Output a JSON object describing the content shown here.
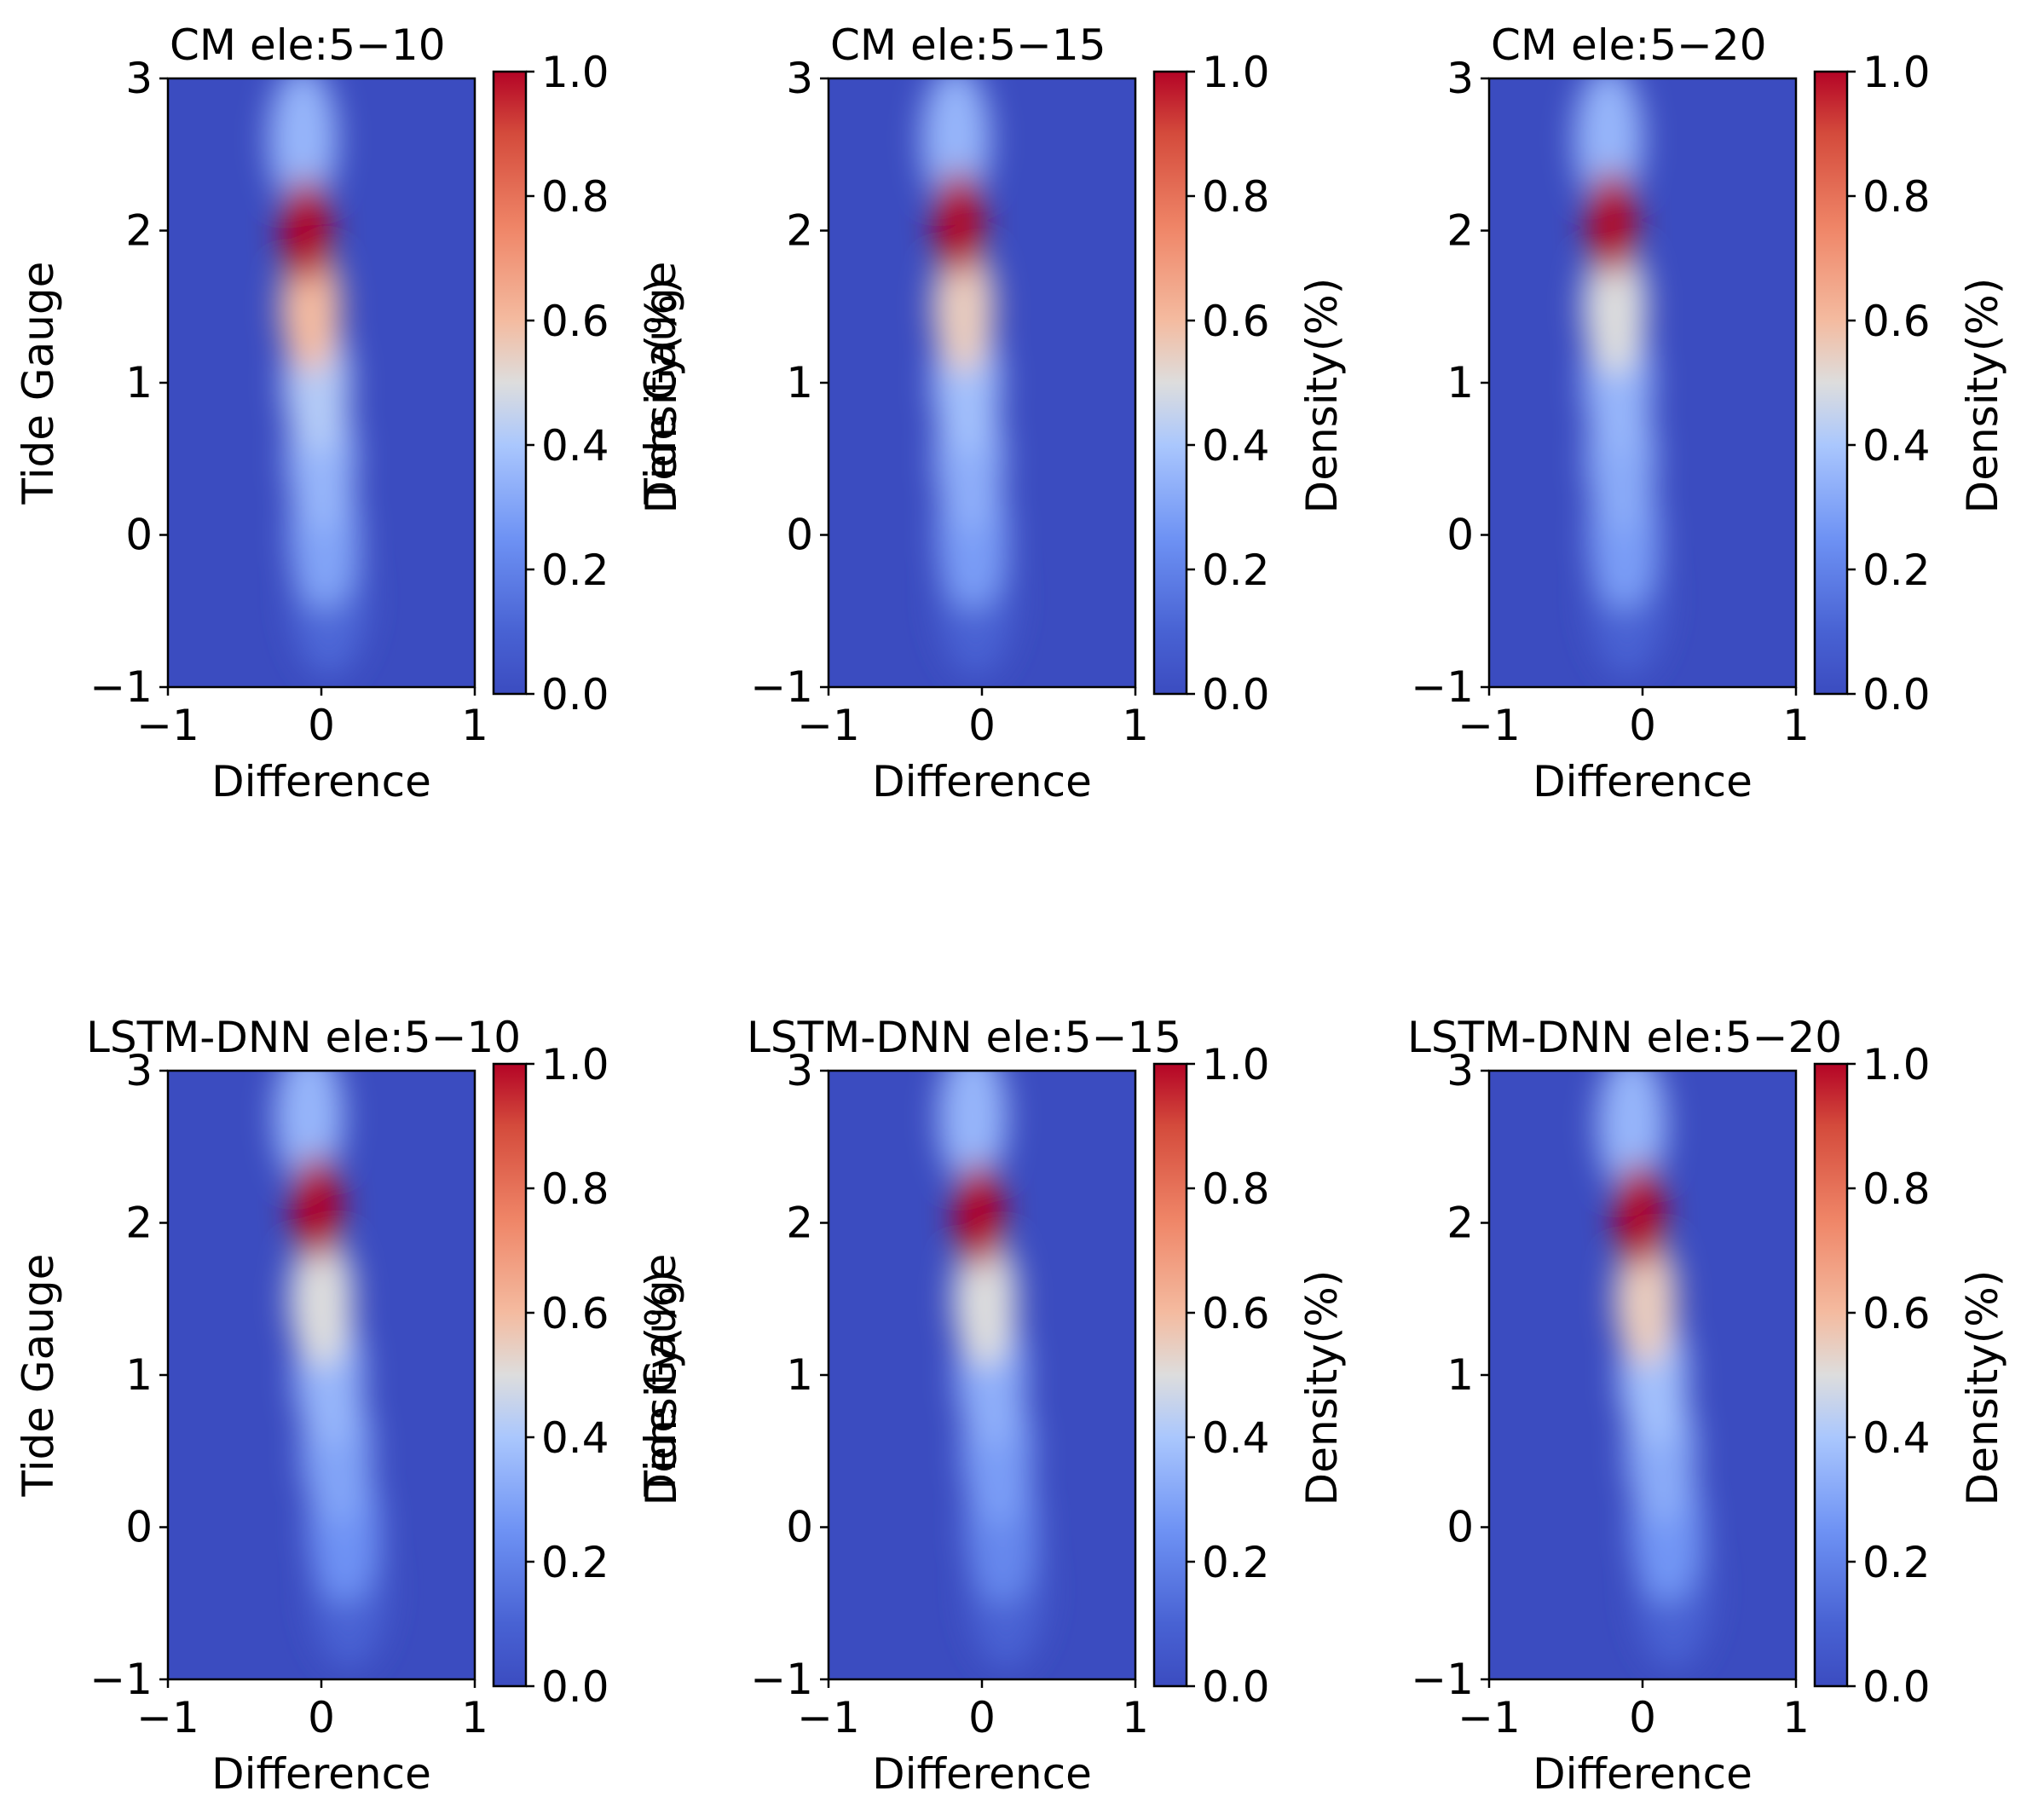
{
  "colors": {
    "colormap": "coolwarm",
    "low": "#3b4cc0",
    "mid": "#dddddd",
    "high": "#b40426",
    "axes_edge": "#000000"
  },
  "chart_data": [
    {
      "type": "heatmap",
      "title": "CM ele:5−10",
      "xlabel": "Difference",
      "ylabel": "Tide Gauge",
      "colorbar_label": "Density(%)",
      "xlim": [
        -1,
        1
      ],
      "ylim": [
        -1,
        3
      ],
      "clim": [
        0.0,
        1.0
      ],
      "x_ticks": [
        "−1",
        "0",
        "1"
      ],
      "y_ticks": [
        "−1",
        "0",
        "1",
        "2",
        "3"
      ],
      "colorbar_ticks": [
        "0.0",
        "0.2",
        "0.4",
        "0.6",
        "0.8",
        "1.0"
      ],
      "peak": {
        "x": -0.1,
        "y": 2.0,
        "density": 1.0
      },
      "density_profile_along_y": [
        {
          "y": 2.6,
          "x_center": -0.12,
          "density": 0.35
        },
        {
          "y": 2.0,
          "x_center": -0.1,
          "density": 1.0
        },
        {
          "y": 1.5,
          "x_center": -0.07,
          "density": 0.6
        },
        {
          "y": 1.0,
          "x_center": -0.03,
          "density": 0.42
        },
        {
          "y": 0.5,
          "x_center": 0.0,
          "density": 0.35
        },
        {
          "y": 0.0,
          "x_center": 0.02,
          "density": 0.3
        },
        {
          "y": -0.4,
          "x_center": 0.05,
          "density": 0.12
        }
      ]
    },
    {
      "type": "heatmap",
      "title": "CM ele:5−15",
      "xlabel": "Difference",
      "ylabel": "Tide Gauge",
      "colorbar_label": "Density(%)",
      "xlim": [
        -1,
        1
      ],
      "ylim": [
        -1,
        3
      ],
      "clim": [
        0.0,
        1.0
      ],
      "x_ticks": [
        "−1",
        "0",
        "1"
      ],
      "y_ticks": [
        "−1",
        "0",
        "1",
        "2",
        "3"
      ],
      "colorbar_ticks": [
        "0.0",
        "0.2",
        "0.4",
        "0.6",
        "0.8",
        "1.0"
      ],
      "peak": {
        "x": -0.15,
        "y": 2.05,
        "density": 1.0
      },
      "density_profile_along_y": [
        {
          "y": 2.6,
          "x_center": -0.17,
          "density": 0.35
        },
        {
          "y": 2.05,
          "x_center": -0.15,
          "density": 1.0
        },
        {
          "y": 1.5,
          "x_center": -0.12,
          "density": 0.55
        },
        {
          "y": 1.0,
          "x_center": -0.1,
          "density": 0.38
        },
        {
          "y": 0.5,
          "x_center": -0.08,
          "density": 0.33
        },
        {
          "y": 0.0,
          "x_center": -0.06,
          "density": 0.28
        },
        {
          "y": -0.4,
          "x_center": -0.04,
          "density": 0.1
        }
      ]
    },
    {
      "type": "heatmap",
      "title": "CM ele:5−20",
      "xlabel": "Difference",
      "ylabel": "",
      "colorbar_label": "Density(%)",
      "xlim": [
        -1,
        1
      ],
      "ylim": [
        -1,
        3
      ],
      "clim": [
        0.0,
        1.0
      ],
      "x_ticks": [
        "−1",
        "0",
        "1"
      ],
      "y_ticks": [
        "−1",
        "0",
        "1",
        "2",
        "3"
      ],
      "colorbar_ticks": [
        "0.0",
        "0.2",
        "0.4",
        "0.6",
        "0.8",
        "1.0"
      ],
      "peak": {
        "x": -0.2,
        "y": 2.05,
        "density": 1.0
      },
      "density_profile_along_y": [
        {
          "y": 2.6,
          "x_center": -0.22,
          "density": 0.35
        },
        {
          "y": 2.05,
          "x_center": -0.2,
          "density": 1.0
        },
        {
          "y": 1.5,
          "x_center": -0.18,
          "density": 0.5
        },
        {
          "y": 1.0,
          "x_center": -0.16,
          "density": 0.35
        },
        {
          "y": 0.5,
          "x_center": -0.14,
          "density": 0.32
        },
        {
          "y": 0.0,
          "x_center": -0.12,
          "density": 0.28
        },
        {
          "y": -0.4,
          "x_center": -0.1,
          "density": 0.1
        }
      ]
    },
    {
      "type": "heatmap",
      "title": "LSTM-DNN ele:5−10",
      "xlabel": "Difference",
      "ylabel": "Tide Gauge",
      "colorbar_label": "Density(%)",
      "xlim": [
        -1,
        1
      ],
      "ylim": [
        -1,
        3
      ],
      "clim": [
        0.0,
        1.0
      ],
      "x_ticks": [
        "−1",
        "0",
        "1"
      ],
      "y_ticks": [
        "−1",
        "0",
        "1",
        "2",
        "3"
      ],
      "colorbar_ticks": [
        "0.0",
        "0.2",
        "0.4",
        "0.6",
        "0.8",
        "1.0"
      ],
      "peak": {
        "x": -0.03,
        "y": 2.1,
        "density": 1.0
      },
      "density_profile_along_y": [
        {
          "y": 2.7,
          "x_center": -0.08,
          "density": 0.35
        },
        {
          "y": 2.1,
          "x_center": -0.03,
          "density": 1.0
        },
        {
          "y": 1.5,
          "x_center": 0.0,
          "density": 0.5
        },
        {
          "y": 1.0,
          "x_center": 0.05,
          "density": 0.35
        },
        {
          "y": 0.5,
          "x_center": 0.1,
          "density": 0.3
        },
        {
          "y": 0.0,
          "x_center": 0.15,
          "density": 0.25
        },
        {
          "y": -0.4,
          "x_center": 0.18,
          "density": 0.1
        }
      ]
    },
    {
      "type": "heatmap",
      "title": "LSTM-DNN ele:5−15",
      "xlabel": "Difference",
      "ylabel": "Tide Gauge",
      "colorbar_label": "Density(%)",
      "xlim": [
        -1,
        1
      ],
      "ylim": [
        -1,
        3
      ],
      "clim": [
        0.0,
        1.0
      ],
      "x_ticks": [
        "−1",
        "0",
        "1"
      ],
      "y_ticks": [
        "−1",
        "0",
        "1",
        "2",
        "3"
      ],
      "colorbar_ticks": [
        "0.0",
        "0.2",
        "0.4",
        "0.6",
        "0.8",
        "1.0"
      ],
      "peak": {
        "x": -0.02,
        "y": 2.05,
        "density": 1.0
      },
      "density_profile_along_y": [
        {
          "y": 2.7,
          "x_center": -0.06,
          "density": 0.35
        },
        {
          "y": 2.05,
          "x_center": -0.02,
          "density": 1.0
        },
        {
          "y": 1.5,
          "x_center": 0.02,
          "density": 0.5
        },
        {
          "y": 1.0,
          "x_center": 0.06,
          "density": 0.33
        },
        {
          "y": 0.5,
          "x_center": 0.1,
          "density": 0.28
        },
        {
          "y": 0.0,
          "x_center": 0.13,
          "density": 0.22
        },
        {
          "y": -0.4,
          "x_center": 0.16,
          "density": 0.1
        }
      ]
    },
    {
      "type": "heatmap",
      "title": "LSTM-DNN ele:5−20",
      "xlabel": "Difference",
      "ylabel": "",
      "colorbar_label": "Density(%)",
      "xlim": [
        -1,
        1
      ],
      "ylim": [
        -1,
        3
      ],
      "clim": [
        0.0,
        1.0
      ],
      "x_ticks": [
        "−1",
        "0",
        "1"
      ],
      "y_ticks": [
        "−1",
        "0",
        "1",
        "2",
        "3"
      ],
      "colorbar_ticks": [
        "0.0",
        "0.2",
        "0.4",
        "0.6",
        "0.8",
        "1.0"
      ],
      "peak": {
        "x": -0.02,
        "y": 2.05,
        "density": 1.0
      },
      "density_profile_along_y": [
        {
          "y": 2.65,
          "x_center": -0.07,
          "density": 0.35
        },
        {
          "y": 2.05,
          "x_center": -0.02,
          "density": 1.0
        },
        {
          "y": 1.5,
          "x_center": 0.02,
          "density": 0.55
        },
        {
          "y": 1.0,
          "x_center": 0.07,
          "density": 0.38
        },
        {
          "y": 0.5,
          "x_center": 0.12,
          "density": 0.32
        },
        {
          "y": 0.0,
          "x_center": 0.16,
          "density": 0.26
        },
        {
          "y": -0.4,
          "x_center": 0.2,
          "density": 0.1
        }
      ]
    }
  ]
}
